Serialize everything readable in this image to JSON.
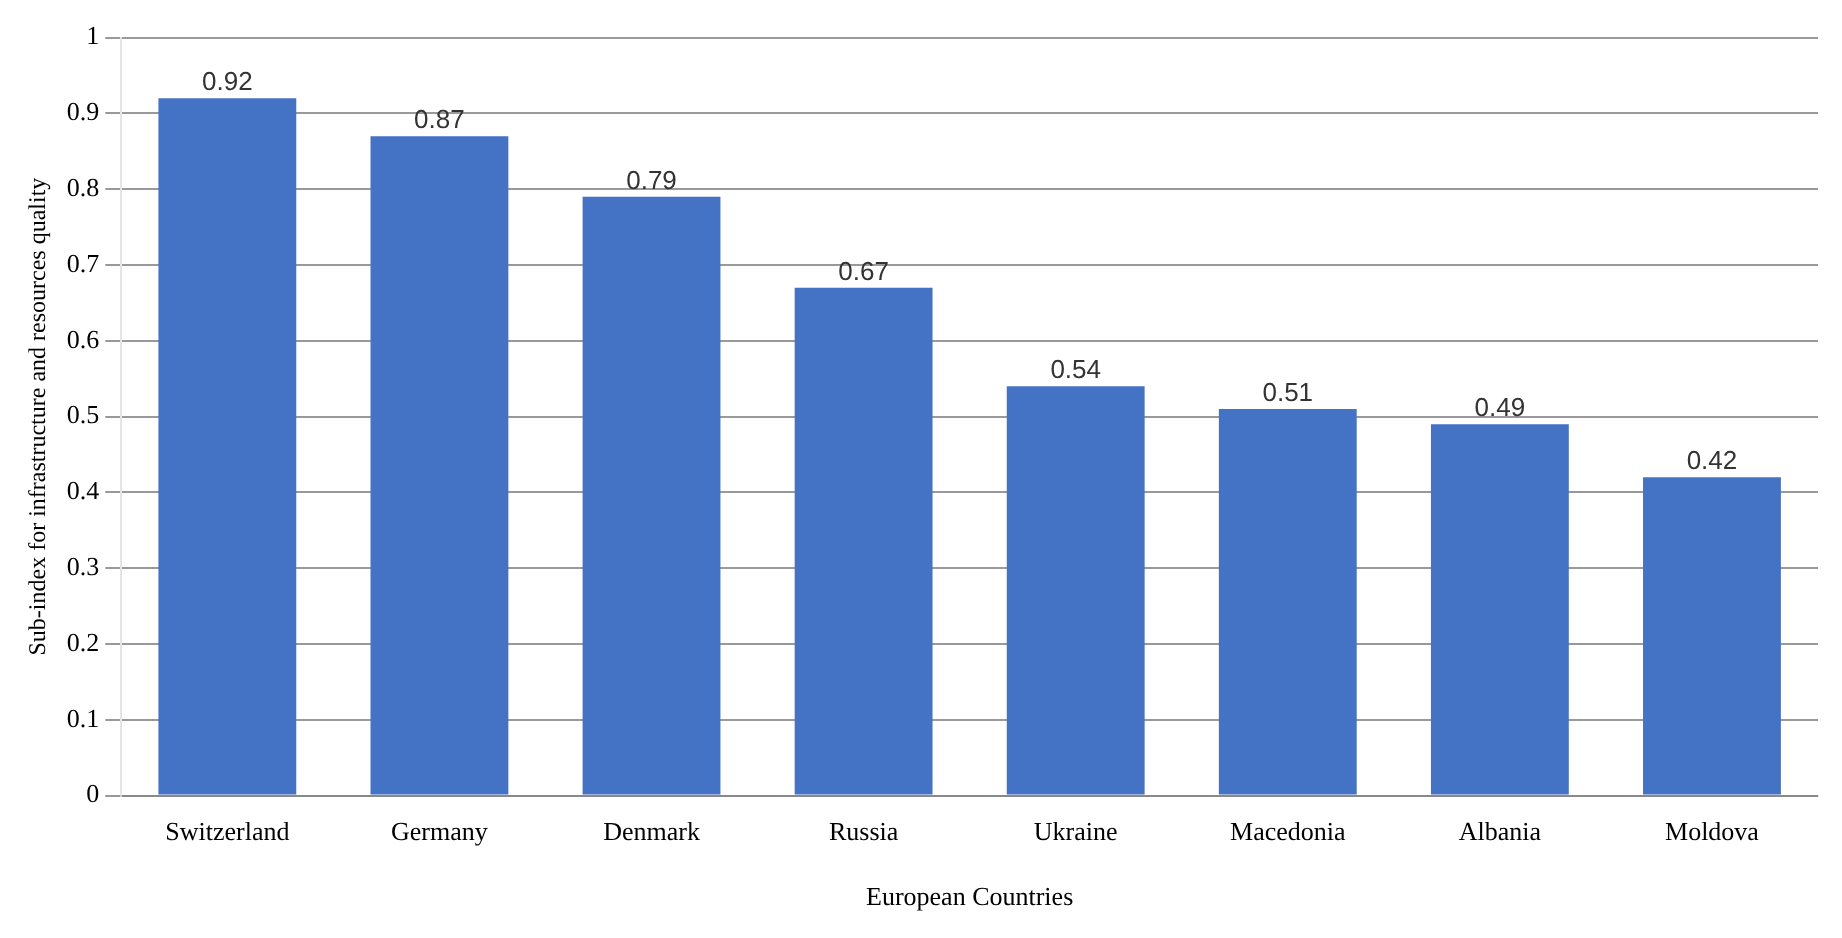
{
  "chart_data": {
    "type": "bar",
    "xlabel": "European Countries",
    "ylabel": "Sub-index for infrastructure and resources quality",
    "categories": [
      "Switzerland",
      "Germany",
      "Denmark",
      "Russia",
      "Ukraine",
      "Macedonia",
      "Albania",
      "Moldova"
    ],
    "values": [
      0.92,
      0.87,
      0.79,
      0.67,
      0.54,
      0.51,
      0.49,
      0.42
    ],
    "color": "#4472c4",
    "ylim": [
      0,
      1
    ],
    "yticks": [
      0,
      0.1,
      0.2,
      0.3,
      0.4,
      0.5,
      0.6,
      0.7,
      0.8,
      0.9,
      1
    ],
    "grid": "y",
    "legend": false,
    "data_labels": true
  }
}
